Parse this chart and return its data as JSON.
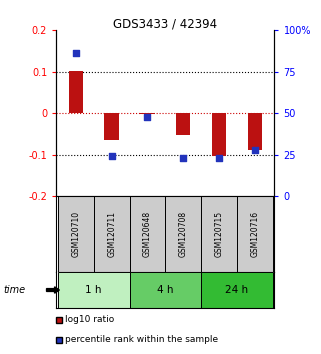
{
  "title": "GDS3433 / 42394",
  "samples": [
    "GSM120710",
    "GSM120711",
    "GSM120648",
    "GSM120708",
    "GSM120715",
    "GSM120716"
  ],
  "log10_ratio": [
    0.102,
    -0.065,
    -0.002,
    -0.052,
    -0.102,
    -0.088
  ],
  "percentile_rank": [
    86,
    24,
    48,
    23,
    23,
    28
  ],
  "groups": [
    {
      "label": "1 h",
      "indices": [
        0,
        1
      ],
      "color": "#c0f0c0"
    },
    {
      "label": "4 h",
      "indices": [
        2,
        3
      ],
      "color": "#66cc66"
    },
    {
      "label": "24 h",
      "indices": [
        4,
        5
      ],
      "color": "#33bb33"
    }
  ],
  "red_bar_color": "#bb1111",
  "blue_dot_color": "#2233bb",
  "ylim_left": [
    -0.2,
    0.2
  ],
  "ylim_right": [
    0,
    100
  ],
  "yticks_left": [
    -0.2,
    -0.1,
    0.0,
    0.1,
    0.2
  ],
  "ytick_labels_left": [
    "-0.2",
    "-0.1",
    "0",
    "0.1",
    "0.2"
  ],
  "yticks_right": [
    0,
    25,
    50,
    75,
    100
  ],
  "ytick_labels_right": [
    "0",
    "25",
    "50",
    "75",
    "100%"
  ],
  "zero_line_color": "#cc0000",
  "dotted_line_color": "#000000",
  "sample_box_color": "#cccccc",
  "time_label": "time",
  "legend_red": "log10 ratio",
  "legend_blue": "percentile rank within the sample",
  "bar_width": 0.4,
  "fig_width": 3.21,
  "fig_height": 3.54
}
